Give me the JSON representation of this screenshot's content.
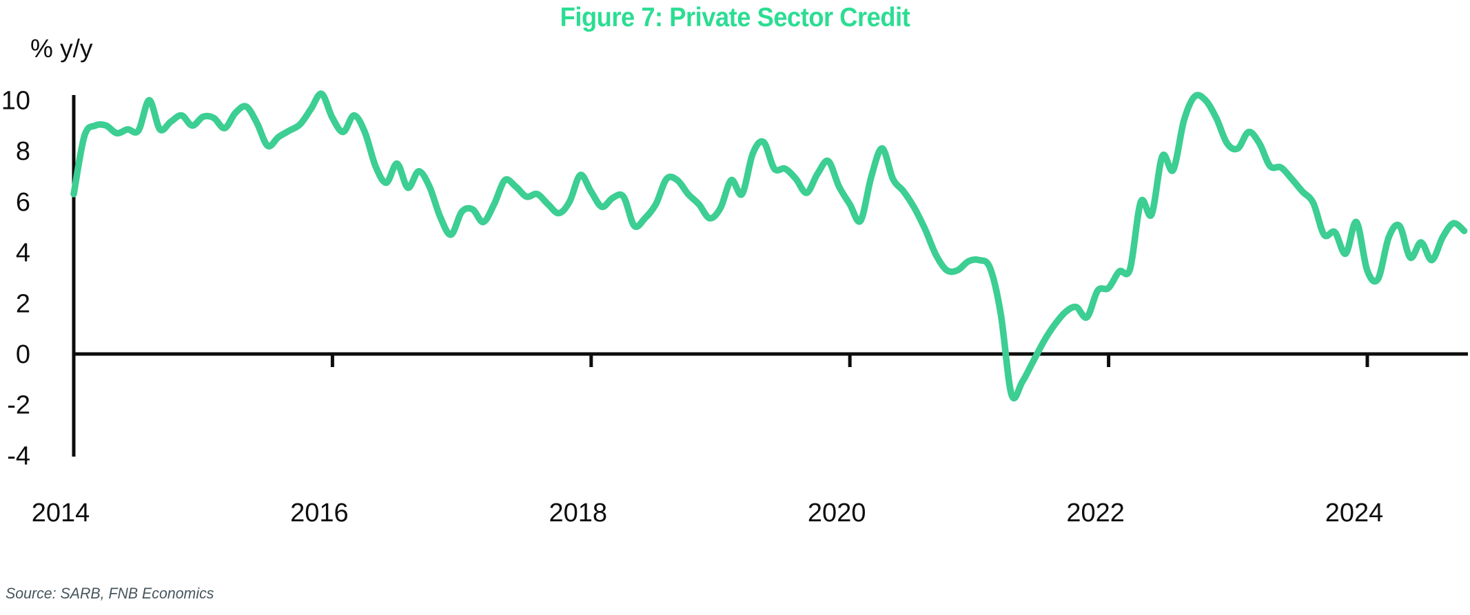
{
  "figure": {
    "title": "Figure 7: Private Sector Credit",
    "y_axis_unit": "% y/y",
    "source": "Source: SARB, FNB Economics"
  },
  "colors": {
    "title": "#2bdd92",
    "line": "#3cce92",
    "axis": "#0d0d0d",
    "source_text": "#46555c"
  },
  "chart_data": {
    "type": "line",
    "title": "Figure 7: Private Sector Credit",
    "ylabel": "% y/y",
    "xlabel": "",
    "source": "Source: SARB, FNB Economics",
    "frequency": "monthly",
    "x_start": "2014-01",
    "x_end": "2024-10",
    "ylim": [
      -4,
      10.4
    ],
    "yticks": [
      10,
      8,
      6,
      4,
      2,
      0,
      -2,
      -4
    ],
    "xticks": [
      2014,
      2016,
      2018,
      2020,
      2022,
      2024
    ],
    "grid": false,
    "legend": false,
    "series": [
      {
        "name": "Private sector credit growth (% y/y)",
        "color": "#3cce92",
        "values": [
          6.3,
          8.6,
          9.0,
          9.0,
          8.7,
          8.85,
          8.8,
          10.0,
          8.85,
          9.15,
          9.4,
          9.0,
          9.35,
          9.3,
          8.9,
          9.5,
          9.75,
          9.1,
          8.2,
          8.55,
          8.8,
          9.05,
          9.65,
          10.25,
          9.3,
          8.75,
          9.4,
          8.75,
          7.4,
          6.75,
          7.5,
          6.55,
          7.2,
          6.6,
          5.4,
          4.7,
          5.6,
          5.7,
          5.2,
          5.9,
          6.85,
          6.6,
          6.2,
          6.3,
          5.9,
          5.55,
          6.0,
          7.05,
          6.4,
          5.8,
          6.15,
          6.2,
          5.05,
          5.35,
          5.9,
          6.9,
          6.85,
          6.3,
          5.9,
          5.35,
          5.75,
          6.85,
          6.3,
          7.9,
          8.35,
          7.3,
          7.3,
          6.9,
          6.35,
          7.1,
          7.6,
          6.6,
          5.9,
          5.25,
          7.0,
          8.1,
          6.9,
          6.4,
          5.75,
          4.9,
          3.9,
          3.3,
          3.3,
          3.65,
          3.7,
          3.4,
          1.6,
          -1.6,
          -1.1,
          -0.3,
          0.5,
          1.15,
          1.65,
          1.85,
          1.45,
          2.5,
          2.6,
          3.25,
          3.35,
          6.0,
          5.5,
          7.8,
          7.25,
          9.2,
          10.15,
          10.0,
          9.3,
          8.3,
          8.1,
          8.75,
          8.3,
          7.4,
          7.35,
          6.9,
          6.4,
          5.95,
          4.7,
          4.8,
          3.95,
          5.2,
          3.3,
          2.95,
          4.6,
          5.05,
          3.8,
          4.4,
          3.7,
          4.6,
          5.15,
          4.85
        ]
      }
    ]
  }
}
